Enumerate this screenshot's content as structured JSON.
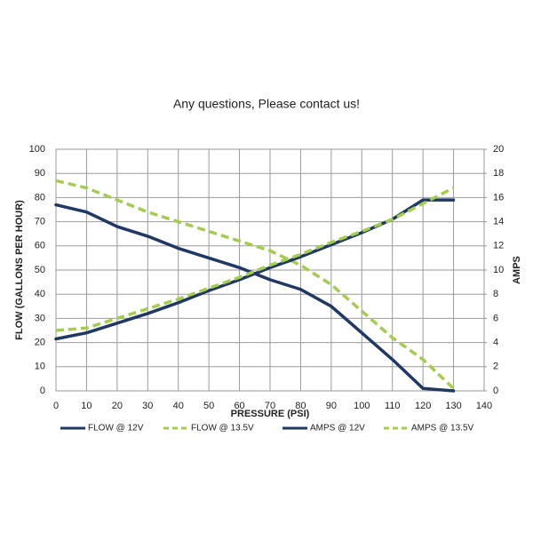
{
  "chart_data": {
    "type": "line",
    "title": "Any questions, Please contact us!",
    "x_label": "PRESSURE (PSI)",
    "y_label": "FLOW (GALLONS PER HOUR)",
    "y2_label": "AMPS",
    "x": [
      0,
      10,
      20,
      30,
      40,
      50,
      60,
      70,
      80,
      90,
      100,
      110,
      120,
      130
    ],
    "series": [
      {
        "name": "FLOW @ 12V",
        "color": "#1f3864",
        "dashed": false,
        "values": [
          77,
          74,
          68,
          64,
          59,
          55,
          51,
          46,
          42,
          35,
          24,
          13,
          1,
          0
        ]
      },
      {
        "name": "FLOW @ 13.5V",
        "color": "#a4cd4f",
        "dashed": true,
        "values": [
          87,
          84,
          79,
          74,
          70,
          66,
          62,
          58,
          52,
          44,
          33,
          22,
          13,
          1
        ]
      },
      {
        "name": "AMPS @ 12V",
        "color": "#1f3864",
        "dashed": false,
        "axis": "y2",
        "values": [
          4.3,
          4.8,
          5.6,
          6.4,
          7.3,
          8.3,
          9.2,
          10.2,
          11.1,
          12.1,
          13.1,
          14.2,
          15.8,
          15.8
        ]
      },
      {
        "name": "AMPS @ 13.5V",
        "color": "#a4cd4f",
        "dashed": true,
        "axis": "y2",
        "values": [
          5,
          5.2,
          6,
          6.8,
          7.6,
          8.5,
          9.4,
          10.4,
          11.3,
          12.3,
          13.2,
          14.2,
          15.5,
          16.8
        ]
      }
    ],
    "xlim": [
      0,
      140
    ],
    "xticks": [
      0,
      10,
      20,
      30,
      40,
      50,
      60,
      70,
      80,
      90,
      100,
      110,
      120,
      130,
      140
    ],
    "ylim": [
      0,
      100
    ],
    "yticks": [
      0,
      10,
      20,
      30,
      40,
      50,
      60,
      70,
      80,
      90,
      100
    ],
    "y2lim": [
      0,
      20
    ],
    "y2ticks": [
      0,
      2,
      4,
      6,
      8,
      10,
      12,
      14,
      16,
      18,
      20
    ],
    "grid": true,
    "legend": "bottom"
  }
}
